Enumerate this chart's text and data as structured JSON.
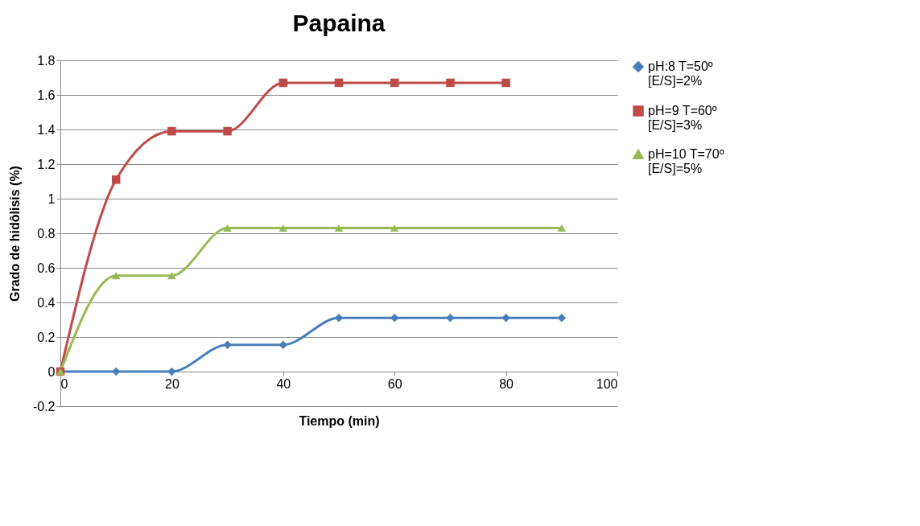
{
  "chart_data": {
    "type": "line",
    "title": "Papaina",
    "xlabel": "Tiempo (min)",
    "ylabel": "Grado de hidôlisis (%)",
    "xlim": [
      0,
      100
    ],
    "xticks": [
      0,
      20,
      40,
      60,
      80,
      100
    ],
    "ylim": [
      -0.2,
      1.8
    ],
    "yticks": [
      -0.2,
      0,
      0.2,
      0.4,
      0.6,
      0.8,
      1,
      1.2,
      1.4,
      1.6,
      1.8
    ],
    "grid": "y",
    "legend": "right",
    "line_style": "solid",
    "series": [
      {
        "name": "pH:8 T=50º [E/S]=2%",
        "color": "#4a7ebb",
        "marker": "diamond",
        "x": [
          0,
          10,
          20,
          30,
          40,
          50,
          60,
          70,
          80,
          90
        ],
        "values": [
          0,
          0,
          0,
          0.155,
          0.155,
          0.31,
          0.31,
          0.31,
          0.31,
          0.31
        ]
      },
      {
        "name": "pH=9 T=60º [E/S]=3%",
        "color": "#be4b48",
        "marker": "square",
        "x": [
          0,
          10,
          20,
          30,
          40,
          50,
          60,
          70,
          80
        ],
        "values": [
          0,
          1.11,
          1.39,
          1.39,
          1.67,
          1.67,
          1.67,
          1.67,
          1.67
        ]
      },
      {
        "name": "pH=10 T=70º [E/S]=5%",
        "color": "#98b954",
        "marker": "triangle",
        "x": [
          0,
          10,
          20,
          30,
          40,
          50,
          60,
          90
        ],
        "values": [
          0,
          0.555,
          0.555,
          0.83,
          0.83,
          0.83,
          0.83,
          0.83
        ]
      }
    ]
  }
}
